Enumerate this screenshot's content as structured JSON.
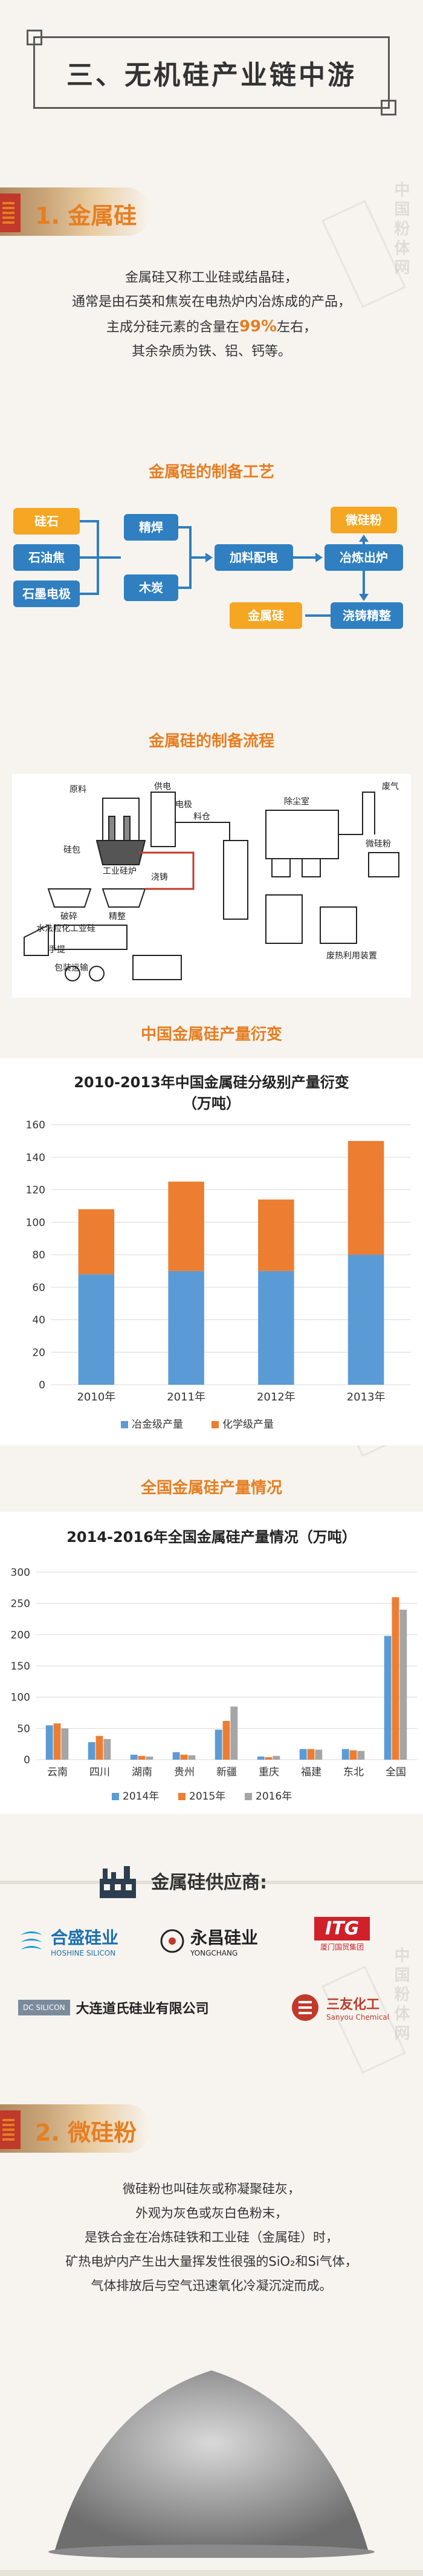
{
  "header": {
    "title": "三、无机硅产业链中游"
  },
  "section1": {
    "label": "1. 金属硅",
    "paragraph_lines": [
      "金属硅又称工业硅或结晶硅，",
      "通常是由石英和焦炭在电热炉内冶炼成的产品，",
      "主成分硅元素的含量在",
      "左右，",
      "其余杂质为铁、铝、钙等。"
    ],
    "highlight": "99%"
  },
  "process": {
    "title": "金属硅的制备工艺",
    "boxes": {
      "quartz": "硅石",
      "petcoke": "石油焦",
      "graphite": "石墨电极",
      "refine": "精焊",
      "charcoal": "木炭",
      "mix": "加料配电",
      "smelt": "冶炼出炉",
      "silica_fume": "微硅粉",
      "metal_si": "金属硅",
      "casting": "浇铸精整"
    }
  },
  "flowchart": {
    "title": "金属硅的制备流程",
    "labels": [
      "原料",
      "供电",
      "电极",
      "料仓",
      "除尘室",
      "废气",
      "微硅粉",
      "硅包",
      "工业硅炉",
      "浇铸",
      "破碎",
      "精整",
      "包装运输",
      "手提",
      "水法粒化工业硅",
      "废热利用装置"
    ]
  },
  "chart1": {
    "title": "中国金属硅产量衍变",
    "chart_title_lines": [
      "2010-2013年中国金属硅分级别产量衍变",
      "（万吨）"
    ]
  },
  "chart2": {
    "title": "全国金属硅产量情况",
    "chart_title": "2014-2016年全国金属硅产量情况（万吨）"
  },
  "chart_data": [
    {
      "type": "bar",
      "title": "2010-2013年中国金属硅分级别产量衍变（万吨）",
      "categories": [
        "2010年",
        "2011年",
        "2012年",
        "2013年"
      ],
      "series": [
        {
          "name": "冶金级产量",
          "color": "#5b9bd5",
          "values": [
            68,
            70,
            70,
            80
          ]
        },
        {
          "name": "化学级产量",
          "color": "#ed7d31",
          "values": [
            40,
            55,
            44,
            70
          ]
        }
      ],
      "stacked": true,
      "ylim": [
        0,
        160
      ],
      "yticks": [
        0,
        20,
        40,
        60,
        80,
        100,
        120,
        140,
        160
      ],
      "legend": "bottom",
      "grid": true
    },
    {
      "type": "bar",
      "title": "2014-2016年全国金属硅产量情况（万吨）",
      "categories": [
        "云南",
        "四川",
        "湖南",
        "贵州",
        "新疆",
        "重庆",
        "福建",
        "东北",
        "全国"
      ],
      "series": [
        {
          "name": "2014年",
          "color": "#5b9bd5",
          "values": [
            55,
            28,
            8,
            12,
            48,
            5,
            17,
            17,
            198
          ]
        },
        {
          "name": "2015年",
          "color": "#ed7d31",
          "values": [
            58,
            38,
            6,
            8,
            62,
            4,
            17,
            15,
            260
          ]
        },
        {
          "name": "2016年",
          "color": "#a5a5a5",
          "values": [
            50,
            33,
            5,
            7,
            85,
            6,
            16,
            14,
            240
          ]
        }
      ],
      "ylim": [
        0,
        300
      ],
      "yticks": [
        0,
        50,
        100,
        150,
        200,
        250,
        300
      ],
      "legend": "bottom",
      "grid": true
    }
  ],
  "suppliers": {
    "title": "金属硅供应商:",
    "logos": [
      {
        "name": "合盛硅业",
        "sub": "HOSHINE SILICON"
      },
      {
        "name": "永昌硅业",
        "sub": "YONGCHANG"
      },
      {
        "name": "ITG",
        "sub": "厦门国贸集团"
      },
      {
        "name": "大连道氏硅业有限公司",
        "sub": "DC SILICON"
      },
      {
        "name": "三友化工",
        "sub": "Sanyou Chemical"
      }
    ]
  },
  "section2": {
    "label": "2. 微硅粉",
    "paragraph_lines": [
      "微硅粉也叫硅灰或称凝聚硅灰，",
      "外观为灰色或灰白色粉末，",
      "是铁合金在冶炼硅铁和工业硅（金属硅）时，",
      "矿热电炉内产生出大量挥发性很强的SiO₂和Si气体，",
      "气体排放后与空气迅速氧化冷凝沉淀而成。"
    ]
  },
  "watermark": {
    "text": "中国粉体网"
  }
}
